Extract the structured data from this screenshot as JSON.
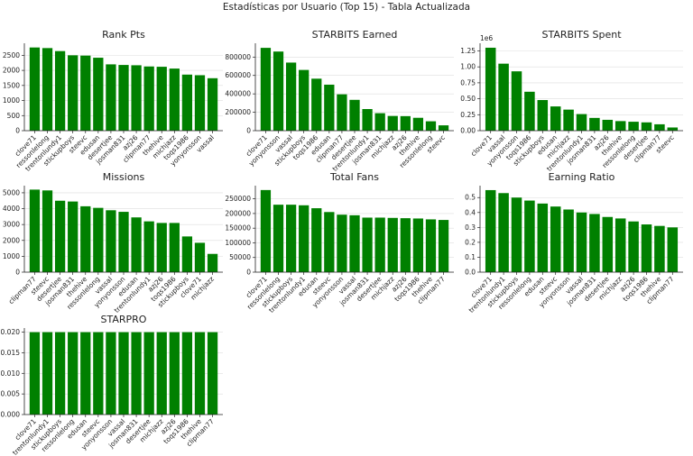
{
  "suptitle": "Estadísticas por Usuario (Top 15) - Tabla Actualizada",
  "bar_color": "#008000",
  "chart_data": [
    {
      "type": "bar",
      "title": "Rank Pts",
      "categories": [
        "clove71",
        "ressonlelong",
        "trentonlundy1",
        "stickupboys",
        "steevc",
        "edusan",
        "desertjee",
        "josman831",
        "azj26",
        "clipman77",
        "thehive",
        "michjazz",
        "toqs1986",
        "yonyonsson",
        "vassal"
      ],
      "values": [
        2760,
        2740,
        2640,
        2500,
        2490,
        2420,
        2200,
        2180,
        2170,
        2130,
        2120,
        2060,
        1860,
        1840,
        1740
      ],
      "yticks": [
        "0",
        "500",
        "1000",
        "1500",
        "2000",
        "2500"
      ],
      "ylim": [
        0,
        2900
      ],
      "grid": true
    },
    {
      "type": "bar",
      "title": "STARBITS Earned",
      "categories": [
        "clove71",
        "yonyonsson",
        "vassal",
        "stickupboys",
        "toqs1986",
        "edusan",
        "clipman77",
        "desertjee",
        "trentonlundy1",
        "josman831",
        "michjazz",
        "azj26",
        "thehive",
        "ressonlelong",
        "steevc"
      ],
      "values": [
        900000,
        860000,
        740000,
        660000,
        565000,
        500000,
        395000,
        335000,
        235000,
        190000,
        160000,
        158000,
        140000,
        102000,
        58000
      ],
      "yticks": [
        "0",
        "200000",
        "400000",
        "600000",
        "800000"
      ],
      "ylim": [
        0,
        950000
      ],
      "grid": true
    },
    {
      "type": "bar",
      "title": "STARBITS Spent",
      "scale_label": "1e6",
      "categories": [
        "clove71",
        "vassal",
        "yonyonsson",
        "toqs1986",
        "stickupboys",
        "edusan",
        "michjazz",
        "trentonlundy1",
        "josman831",
        "azj26",
        "thehive",
        "ressonlelong",
        "desertjee",
        "clipman77",
        "steevc"
      ],
      "values": [
        1.3,
        1.05,
        0.93,
        0.61,
        0.48,
        0.38,
        0.33,
        0.26,
        0.2,
        0.17,
        0.15,
        0.14,
        0.13,
        0.1,
        0.05
      ],
      "yticks": [
        "0.00",
        "0.25",
        "0.50",
        "0.75",
        "1.00",
        "1.25"
      ],
      "ylim": [
        0,
        1.37
      ],
      "grid": true
    },
    {
      "type": "bar",
      "title": "Missions",
      "categories": [
        "clipman77",
        "steevc",
        "desertjee",
        "josman831",
        "thehive",
        "ressonlelong",
        "vassal",
        "yonyonsson",
        "edusan",
        "trentonlundy1",
        "azj26",
        "toqs1986",
        "stickupboys",
        "clove71",
        "michjazz"
      ],
      "values": [
        5200,
        5150,
        4500,
        4450,
        4150,
        4050,
        3900,
        3800,
        3450,
        3200,
        3100,
        3100,
        2250,
        1850,
        1150
      ],
      "yticks": [
        "0",
        "1000",
        "2000",
        "3000",
        "4000",
        "5000"
      ],
      "ylim": [
        0,
        5450
      ],
      "grid": true
    },
    {
      "type": "bar",
      "title": "Total Fans",
      "categories": [
        "clove71",
        "ressonlelong",
        "stickupboys",
        "trentonlundy1",
        "edusan",
        "steevc",
        "yonyonsson",
        "vassal",
        "josman831",
        "desertjee",
        "michjazz",
        "azj26",
        "toqs1986",
        "thehive",
        "clipman77"
      ],
      "values": [
        280000,
        230000,
        230000,
        228000,
        218000,
        205000,
        196000,
        194000,
        186000,
        186000,
        185000,
        184000,
        183000,
        180000,
        178000
      ],
      "yticks": [
        "0",
        "50000",
        "100000",
        "150000",
        "200000",
        "250000"
      ],
      "ylim": [
        0,
        295000
      ],
      "grid": true
    },
    {
      "type": "bar",
      "title": "Earning Ratio",
      "categories": [
        "clove71",
        "trentonlundy1",
        "stickupboys",
        "ressonlelong",
        "edusan",
        "steevc",
        "yonyonsson",
        "vassal",
        "josman831",
        "desertjee",
        "michjazz",
        "azj26",
        "toqs1986",
        "thehive",
        "clipman77"
      ],
      "values": [
        0.55,
        0.53,
        0.5,
        0.48,
        0.46,
        0.44,
        0.42,
        0.4,
        0.39,
        0.37,
        0.36,
        0.34,
        0.32,
        0.31,
        0.3
      ],
      "yticks": [
        "0.0",
        "0.1",
        "0.2",
        "0.3",
        "0.4",
        "0.5"
      ],
      "ylim": [
        0,
        0.58
      ],
      "grid": true
    },
    {
      "type": "bar",
      "title": "STARPRO",
      "categories": [
        "clove71",
        "trentonlundy1",
        "stickupboys",
        "ressonlelong",
        "edusan",
        "steevc",
        "yonyonsson",
        "vassal",
        "josman831",
        "desertjee",
        "michjazz",
        "azj26",
        "toqs1986",
        "thehive",
        "clipman77"
      ],
      "values": [
        0.02,
        0.02,
        0.02,
        0.02,
        0.02,
        0.02,
        0.02,
        0.02,
        0.02,
        0.02,
        0.02,
        0.02,
        0.02,
        0.02,
        0.02
      ],
      "yticks": [
        "0.000",
        "0.005",
        "0.010",
        "0.015",
        "0.020"
      ],
      "ylim": [
        0,
        0.021
      ],
      "grid": true
    }
  ]
}
